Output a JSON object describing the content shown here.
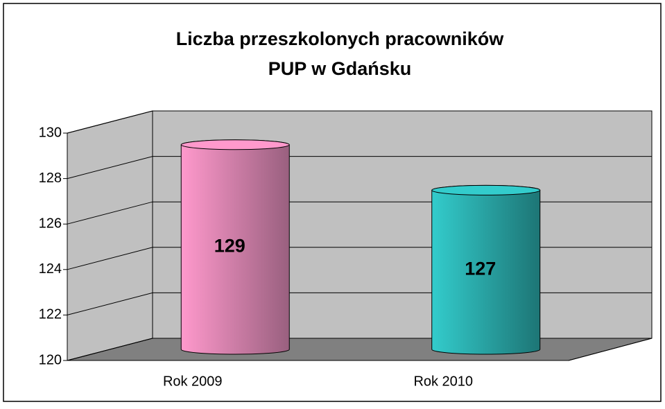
{
  "chart_data": {
    "type": "bar3d",
    "title": [
      "Liczba przeszkolonych pracowników",
      "PUP w Gdańsku"
    ],
    "categories": [
      "Rok 2009",
      "Rok 2010"
    ],
    "values": [
      129,
      127
    ],
    "colors": [
      [
        "#ff99cc",
        "#99607f"
      ],
      [
        "#33cccc",
        "#1d7575"
      ]
    ],
    "ylim": [
      120,
      130
    ],
    "yticks": [
      120,
      122,
      124,
      126,
      128,
      130
    ],
    "grid": true
  }
}
